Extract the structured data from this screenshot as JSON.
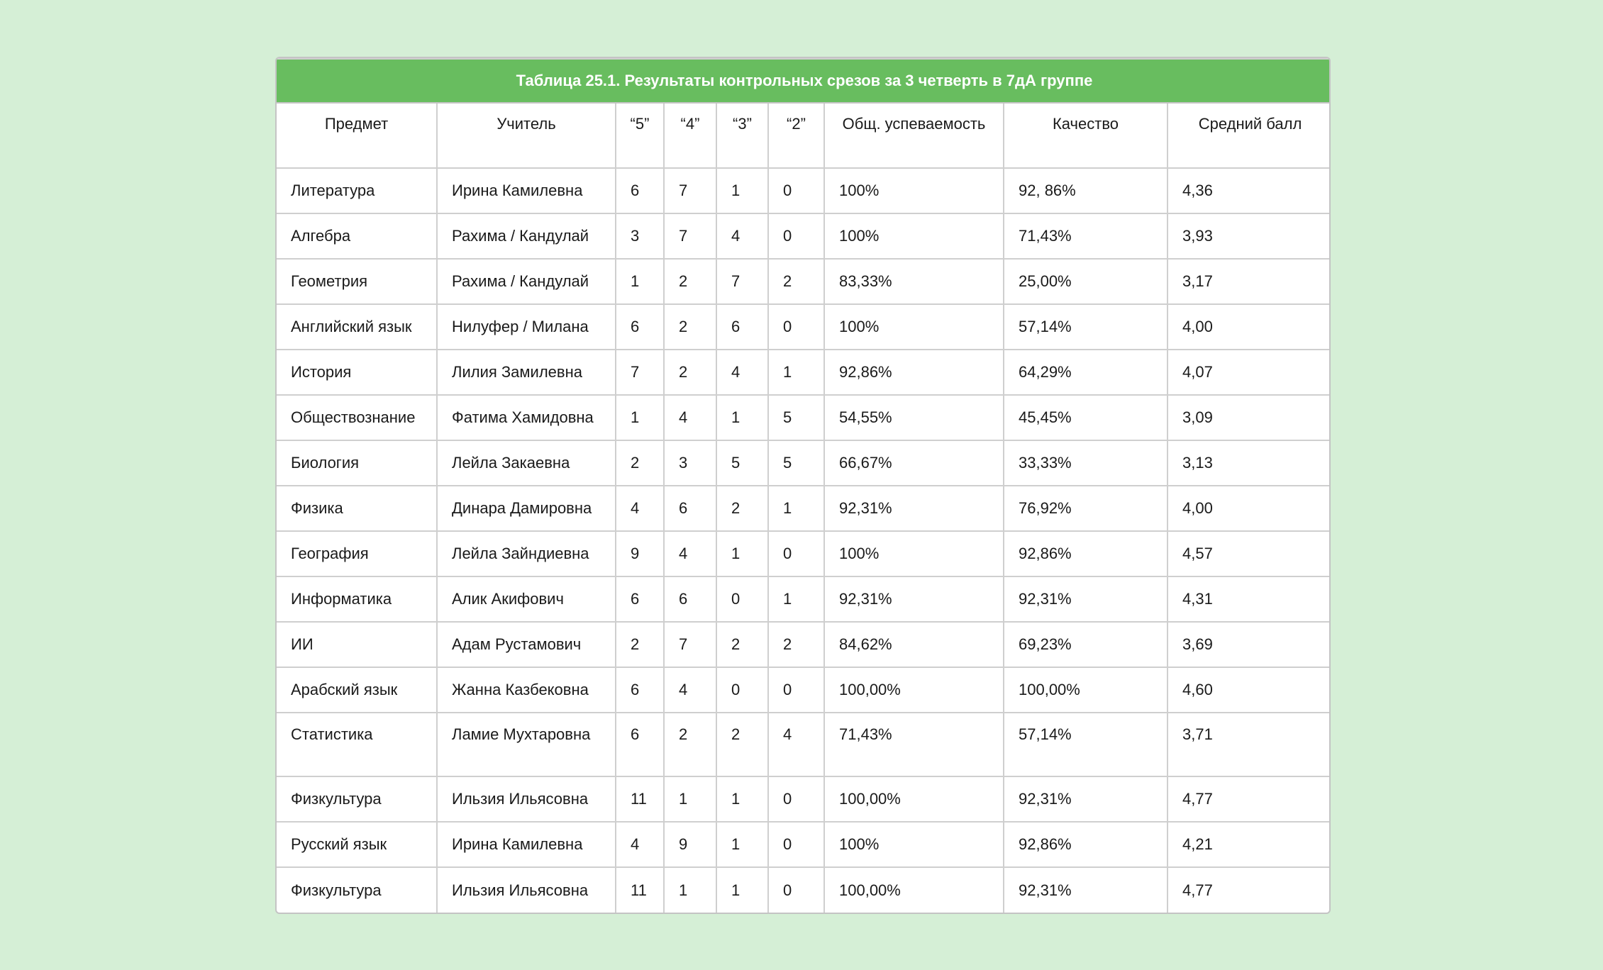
{
  "title": "Таблица 25.1. Результаты контрольных срезов за 3 четверть в 7дА группе",
  "columns": [
    "Предмет",
    "Учитель",
    "“5”",
    "“4”",
    "“3”",
    "“2”",
    "Общ. успеваемость",
    "Качество",
    "Средний балл"
  ],
  "rows": [
    [
      "Литература",
      "Ирина Камилевна",
      "6",
      "7",
      "1",
      "0",
      "100%",
      "92, 86%",
      "4,36"
    ],
    [
      "Алгебра",
      "Рахима / Кандулай",
      "3",
      "7",
      "4",
      "0",
      "100%",
      "71,43%",
      "3,93"
    ],
    [
      "Геометрия",
      "Рахима / Кандулай",
      "1",
      "2",
      "7",
      "2",
      "83,33%",
      "25,00%",
      "3,17"
    ],
    [
      "Английский язык",
      "Нилуфер / Милана",
      "6",
      "2",
      "6",
      "0",
      "100%",
      "57,14%",
      "4,00"
    ],
    [
      "История",
      "Лилия Замилевна",
      "7",
      "2",
      "4",
      "1",
      "92,86%",
      "64,29%",
      "4,07"
    ],
    [
      "Обществознание",
      "Фатима Хамидовна",
      "1",
      "4",
      "1",
      "5",
      "54,55%",
      "45,45%",
      "3,09"
    ],
    [
      "Биология",
      "Лейла Закаевна",
      "2",
      "3",
      "5",
      "5",
      "66,67%",
      "33,33%",
      "3,13"
    ],
    [
      "Физика",
      "Динара Дамировна",
      "4",
      "6",
      "2",
      "1",
      "92,31%",
      "76,92%",
      "4,00"
    ],
    [
      "География",
      "Лейла Зайндиевна",
      "9",
      "4",
      "1",
      "0",
      "100%",
      "92,86%",
      "4,57"
    ],
    [
      "Информатика",
      "Алик Акифович",
      "6",
      "6",
      "0",
      "1",
      "92,31%",
      "92,31%",
      "4,31"
    ],
    [
      "ИИ",
      "Адам Рустамович",
      "2",
      "7",
      "2",
      "2",
      "84,62%",
      "69,23%",
      "3,69"
    ],
    [
      "Арабский язык",
      "Жанна Казбековна",
      "6",
      "4",
      "0",
      "0",
      "100,00%",
      "100,00%",
      "4,60"
    ],
    [
      "Статистика",
      "Ламие Мухтаровна",
      "6",
      "2",
      "2",
      "4",
      "71,43%",
      "57,14%",
      "3,71"
    ],
    [
      "Физкультура",
      "Ильзия Ильясовна",
      "11",
      "1",
      "1",
      "0",
      "100,00%",
      "92,31%",
      "4,77"
    ],
    [
      "Русский язык",
      "Ирина Камилевна",
      "4",
      "9",
      "1",
      "0",
      "100%",
      "92,86%",
      "4,21"
    ],
    [
      "Физкультура",
      "Ильзия Ильясовна",
      "11",
      "1",
      "1",
      "0",
      "100,00%",
      "92,31%",
      "4,77"
    ]
  ]
}
